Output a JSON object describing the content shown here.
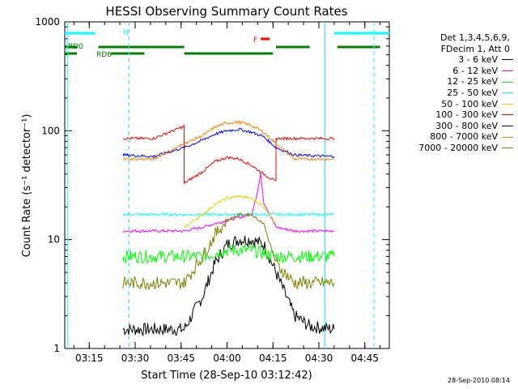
{
  "chart_data": {
    "type": "line",
    "title": "HESSI Observing Summary Count Rates",
    "xlabel": "Start Time (28-Sep-10 03:12:42)",
    "ylabel": "Count Rate (s⁻¹ detector⁻¹)",
    "x_range": [
      "03:07",
      "04:53"
    ],
    "x_tick_labels": [
      "03:15",
      "03:30",
      "03:45",
      "04:00",
      "04:15",
      "04:30",
      "04:45"
    ],
    "y_scale": "log",
    "y_range": [
      1,
      1000
    ],
    "y_tick_labels": [
      "1",
      "10",
      "100",
      "1000"
    ],
    "grid": false,
    "legend_position": "right",
    "legend_header": [
      "Det 1,3,4,5,6,9,",
      "FDecim 1, Att 0"
    ],
    "series": [
      {
        "name": "3 - 6 keV",
        "color": "#000000",
        "x": [
          "03:26",
          "03:36",
          "03:46",
          "03:52",
          "03:56",
          "04:00",
          "04:04",
          "04:08",
          "04:12",
          "04:16",
          "04:22",
          "04:27",
          "04:35"
        ],
        "y": [
          1.5,
          1.5,
          1.5,
          3,
          6,
          9,
          10,
          10,
          9,
          5,
          2,
          1.6,
          1.5
        ]
      },
      {
        "name": "6 - 12 keV",
        "color": "#ff00ff",
        "x": [
          "03:26",
          "03:36",
          "03:46",
          "03:52",
          "03:56",
          "04:00",
          "04:04",
          "04:08",
          "04:10",
          "04:11",
          "04:12",
          "04:16",
          "04:22",
          "04:27",
          "04:35"
        ],
        "y": [
          12,
          12,
          12,
          13,
          14,
          15,
          16,
          17,
          28,
          40,
          22,
          13,
          12,
          12,
          12
        ]
      },
      {
        "name": "12 - 25 keV",
        "color": "#00ff00",
        "x": [
          "03:26",
          "03:36",
          "03:46",
          "03:52",
          "03:56",
          "04:00",
          "04:04",
          "04:08",
          "04:12",
          "04:16",
          "04:22",
          "04:27",
          "04:35"
        ],
        "y": [
          7,
          7,
          7,
          7,
          7.5,
          8,
          8,
          8,
          7.5,
          7,
          7,
          7,
          7
        ]
      },
      {
        "name": "25 - 50 keV",
        "color": "#00ffff",
        "x": [
          "03:26",
          "03:36",
          "03:46",
          "03:52",
          "03:56",
          "04:00",
          "04:04",
          "04:08",
          "04:12",
          "04:16",
          "04:22",
          "04:27",
          "04:35"
        ],
        "y": [
          17,
          17,
          17,
          17,
          17,
          17,
          17,
          17,
          17,
          17,
          17,
          17,
          17
        ]
      },
      {
        "name": "50 - 100 keV",
        "color": "#d9d900",
        "x": [
          "03:46",
          "03:52",
          "03:56",
          "04:00",
          "04:04",
          "04:08",
          "04:12",
          "04:16"
        ],
        "y": [
          13,
          17,
          21,
          24,
          25,
          24,
          20,
          14
        ]
      },
      {
        "name": "100 - 300 keV",
        "color": "#ff0000",
        "x": [
          "03:26",
          "03:36",
          "03:46",
          "03:46",
          "03:52",
          "03:56",
          "04:00",
          "04:04",
          "04:08",
          "04:12",
          "04:16",
          "04:16",
          "04:22",
          "04:27",
          "04:35"
        ],
        "y": [
          85,
          85,
          110,
          33,
          42,
          52,
          57,
          55,
          48,
          40,
          34,
          85,
          85,
          85,
          85
        ]
      },
      {
        "name": "300 - 800 keV",
        "color": "#0000ff",
        "x": [
          "03:26",
          "03:36",
          "03:46",
          "03:52",
          "03:56",
          "04:00",
          "04:04",
          "04:08",
          "04:12",
          "04:16",
          "04:22",
          "04:27",
          "04:35"
        ],
        "y": [
          60,
          58,
          70,
          82,
          93,
          100,
          103,
          97,
          88,
          70,
          60,
          59,
          58
        ]
      },
      {
        "name": "800 - 7000 keV",
        "color": "#ff8000",
        "x": [
          "03:26",
          "03:36",
          "03:46",
          "03:52",
          "03:56",
          "04:00",
          "04:04",
          "04:08",
          "04:12",
          "04:16",
          "04:22",
          "04:27",
          "04:35"
        ],
        "y": [
          55,
          55,
          76,
          90,
          108,
          118,
          120,
          112,
          97,
          76,
          55,
          55,
          55
        ]
      },
      {
        "name": "7000 - 20000 keV",
        "color": "#808000",
        "x": [
          "03:26",
          "03:36",
          "03:46",
          "03:52",
          "03:56",
          "04:00",
          "04:04",
          "04:08",
          "04:12",
          "04:16",
          "04:22",
          "04:27",
          "04:35"
        ],
        "y": [
          4,
          4,
          4,
          7,
          11,
          15,
          17,
          17,
          14,
          6,
          4,
          4,
          4
        ]
      }
    ],
    "flags": [
      {
        "label": "N",
        "color": "#00ffff",
        "segments": [
          [
            "03:07",
            "03:17"
          ],
          [
            "04:35",
            "04:53"
          ]
        ]
      },
      {
        "label": "RD0",
        "color": "#008000",
        "segments": [
          [
            "03:07",
            "03:11"
          ],
          [
            "03:18",
            "03:46"
          ],
          [
            "04:16",
            "04:27"
          ],
          [
            "04:36",
            "04:50"
          ]
        ]
      },
      {
        "label": "RD6",
        "color": "#008000",
        "segments": [
          [
            "03:07",
            "03:11"
          ],
          [
            "03:22",
            "03:33"
          ],
          [
            "03:46",
            "04:15"
          ]
        ]
      },
      {
        "label": "F",
        "color": "#ff0000",
        "segments": [
          [
            "04:11",
            "04:14"
          ]
        ]
      }
    ],
    "saa_markers_solid": [
      "03:08",
      "04:32"
    ],
    "saa_markers_dashed": [
      "03:28",
      "04:48"
    ]
  },
  "footer_timestamp": "28-Sep-2010 08:14"
}
